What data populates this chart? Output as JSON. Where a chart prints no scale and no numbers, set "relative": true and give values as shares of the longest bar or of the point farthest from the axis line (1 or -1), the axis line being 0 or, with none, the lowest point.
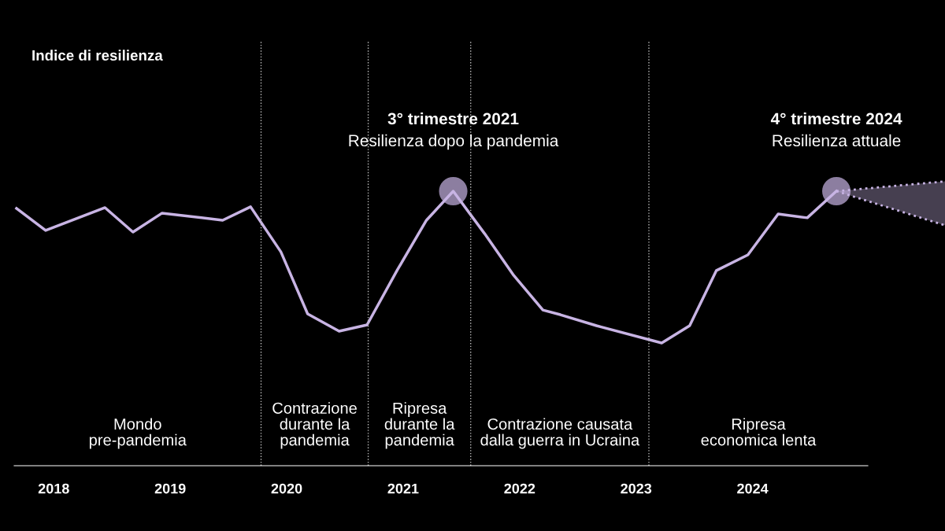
{
  "chart_data": {
    "type": "line",
    "title": "Indice di resilienza",
    "relative": true,
    "grid": false,
    "legend": false,
    "marker": "none",
    "line_style": "solid",
    "xlim": [
      2017.66,
      2024.99
    ],
    "xticks": [
      2018,
      2019,
      2020,
      2021,
      2022,
      2023,
      2024
    ],
    "series": [
      {
        "color": "#c8b4e4",
        "x": [
          2017.68,
          2017.93,
          2018.44,
          2018.68,
          2018.93,
          2019.45,
          2019.69,
          2019.95,
          2020.18,
          2020.45,
          2020.69,
          2020.95,
          2021.2,
          2021.43,
          2021.7,
          2021.95,
          2022.2,
          2022.35,
          2022.66,
          2023.22,
          2023.46,
          2023.69,
          2023.96,
          2024.22,
          2024.47,
          2024.72
        ],
        "values": [
          0.937,
          0.857,
          0.94,
          0.851,
          0.92,
          0.894,
          0.943,
          0.779,
          0.553,
          0.49,
          0.513,
          0.713,
          0.894,
          1,
          0.845,
          0.693,
          0.567,
          0.55,
          0.51,
          0.447,
          0.51,
          0.711,
          0.768,
          0.917,
          0.903,
          1
        ]
      }
    ],
    "ref_lines": [
      {
        "axis": "x",
        "value": 2019.78,
        "line_style": "dotted",
        "color": "#bbbbbb"
      },
      {
        "axis": "x",
        "value": 2020.7,
        "line_style": "dotted",
        "color": "#bbbbbb"
      },
      {
        "axis": "x",
        "value": 2021.58,
        "line_style": "dotted",
        "color": "#bbbbbb"
      },
      {
        "axis": "x",
        "value": 2023.11,
        "line_style": "dotted",
        "color": "#bbbbbb"
      }
    ],
    "annotations": [
      "3° trimestre 2021\nResilienza dopo la pandemia",
      "4° trimestre 2024\nResilienza attuale",
      "Mondo\npre-pandemia",
      "Contrazione\ndurante la\npandemia",
      "Ripresa\ndurante la\npandemia",
      "Contrazione causata\ndalla guerra in Ucraina",
      "Ripresa\neconomica lenta"
    ]
  }
}
